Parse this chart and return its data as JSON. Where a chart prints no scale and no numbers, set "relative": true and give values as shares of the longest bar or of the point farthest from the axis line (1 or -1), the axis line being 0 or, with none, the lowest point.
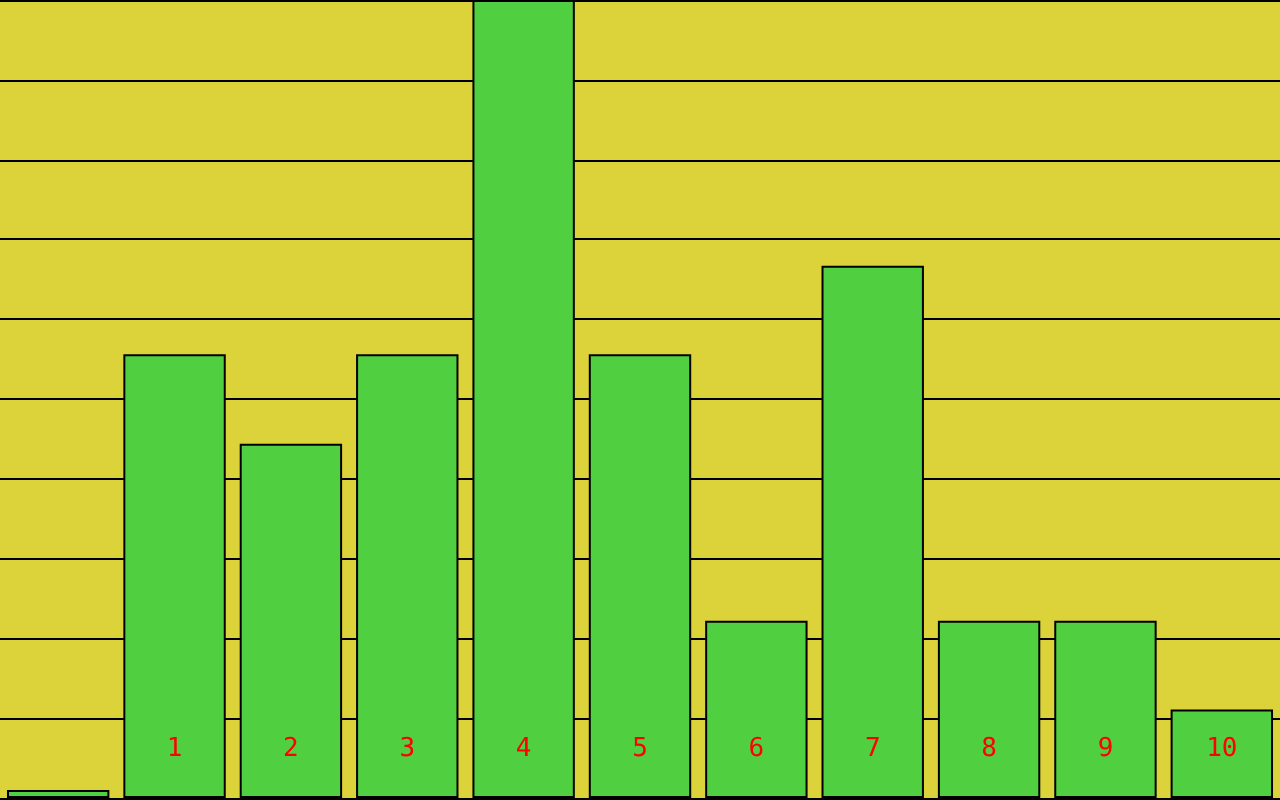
{
  "chart_data": {
    "type": "bar",
    "categories": [
      null,
      "1",
      "2",
      "3",
      "4",
      "5",
      "6",
      "7",
      "8",
      "9",
      "10"
    ],
    "values": [
      0.01,
      0.556,
      0.444,
      0.556,
      1,
      0.556,
      0.222,
      0.667,
      0.222,
      0.222,
      0.111
    ],
    "color": "#50d040",
    "relative": true,
    "grid": true
  }
}
